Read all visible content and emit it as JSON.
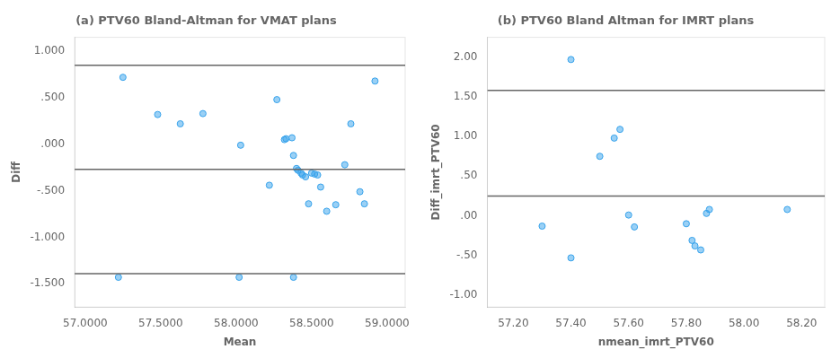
{
  "chart_data": [
    {
      "type": "scatter",
      "title": "(a) PTV60 Bland-Altman for VMAT plans",
      "x_label": "Mean",
      "y_label": "Diff",
      "xlim": [
        56.93,
        59.12
      ],
      "ylim": [
        -1.75,
        1.15
      ],
      "xticks": [
        {
          "value": 57.0,
          "label": "57.0000"
        },
        {
          "value": 57.5,
          "label": "57.5000"
        },
        {
          "value": 58.0,
          "label": "58.0000"
        },
        {
          "value": 58.5,
          "label": "58.5000"
        },
        {
          "value": 59.0,
          "label": "59.0000"
        }
      ],
      "yticks": [
        {
          "value": -1.5,
          "label": "-1.500"
        },
        {
          "value": -1.0,
          "label": "-1.000"
        },
        {
          "value": -0.5,
          "label": "-.500"
        },
        {
          "value": 0.0,
          "label": ".000"
        },
        {
          "value": 0.5,
          "label": ".500"
        },
        {
          "value": 1.0,
          "label": "1.000"
        }
      ],
      "hlines": [
        0.85,
        -0.27,
        -1.39
      ],
      "x": [
        57.25,
        57.48,
        57.63,
        57.78,
        58.03,
        58.22,
        58.27,
        58.32,
        58.33,
        58.37,
        58.38,
        58.4,
        58.41,
        58.43,
        58.44,
        58.46,
        58.48,
        58.5,
        58.52,
        58.54,
        58.56,
        58.6,
        58.66,
        58.72,
        58.76,
        58.82,
        58.85,
        58.92,
        57.22,
        58.02,
        58.38
      ],
      "values": [
        0.72,
        0.32,
        0.22,
        0.33,
        -0.01,
        -0.44,
        0.48,
        0.05,
        0.06,
        0.07,
        -0.12,
        -0.26,
        -0.28,
        -0.31,
        -0.33,
        -0.35,
        -0.64,
        -0.31,
        -0.32,
        -0.33,
        -0.46,
        -0.72,
        -0.65,
        -0.22,
        0.22,
        -0.51,
        -0.64,
        0.68,
        -1.43,
        -1.43,
        -1.43
      ],
      "marker": "circle",
      "grid": false
    },
    {
      "type": "scatter",
      "title": "(b) PTV60 Bland Altman for IMRT plans",
      "x_label": "nmean_imrt_PTV60",
      "y_label": "Diff_imrt_PTV60",
      "xlim": [
        57.11,
        58.28
      ],
      "ylim": [
        -1.15,
        2.25
      ],
      "xticks": [
        {
          "value": 57.2,
          "label": "57.20"
        },
        {
          "value": 57.4,
          "label": "57.40"
        },
        {
          "value": 57.6,
          "label": "57.60"
        },
        {
          "value": 57.8,
          "label": "57.80"
        },
        {
          "value": 58.0,
          "label": "58.00"
        },
        {
          "value": 58.2,
          "label": "58.20"
        }
      ],
      "yticks": [
        {
          "value": -1.0,
          "label": "-1.00"
        },
        {
          "value": -0.5,
          "label": "-.50"
        },
        {
          "value": 0.0,
          "label": ".00"
        },
        {
          "value": 0.5,
          "label": ".50"
        },
        {
          "value": 1.0,
          "label": "1.00"
        },
        {
          "value": 1.5,
          "label": "1.50"
        },
        {
          "value": 2.0,
          "label": "2.00"
        }
      ],
      "hlines": [
        1.58,
        0.25
      ],
      "x": [
        57.3,
        57.4,
        57.5,
        57.55,
        57.57,
        57.6,
        57.62,
        57.8,
        57.82,
        57.83,
        57.85,
        57.87,
        57.88,
        58.15,
        57.4
      ],
      "values": [
        -0.13,
        -0.53,
        0.75,
        0.98,
        1.09,
        0.01,
        -0.14,
        -0.1,
        -0.31,
        -0.38,
        -0.43,
        0.03,
        0.08,
        0.08,
        1.97
      ],
      "marker": "circle",
      "grid": false
    }
  ]
}
